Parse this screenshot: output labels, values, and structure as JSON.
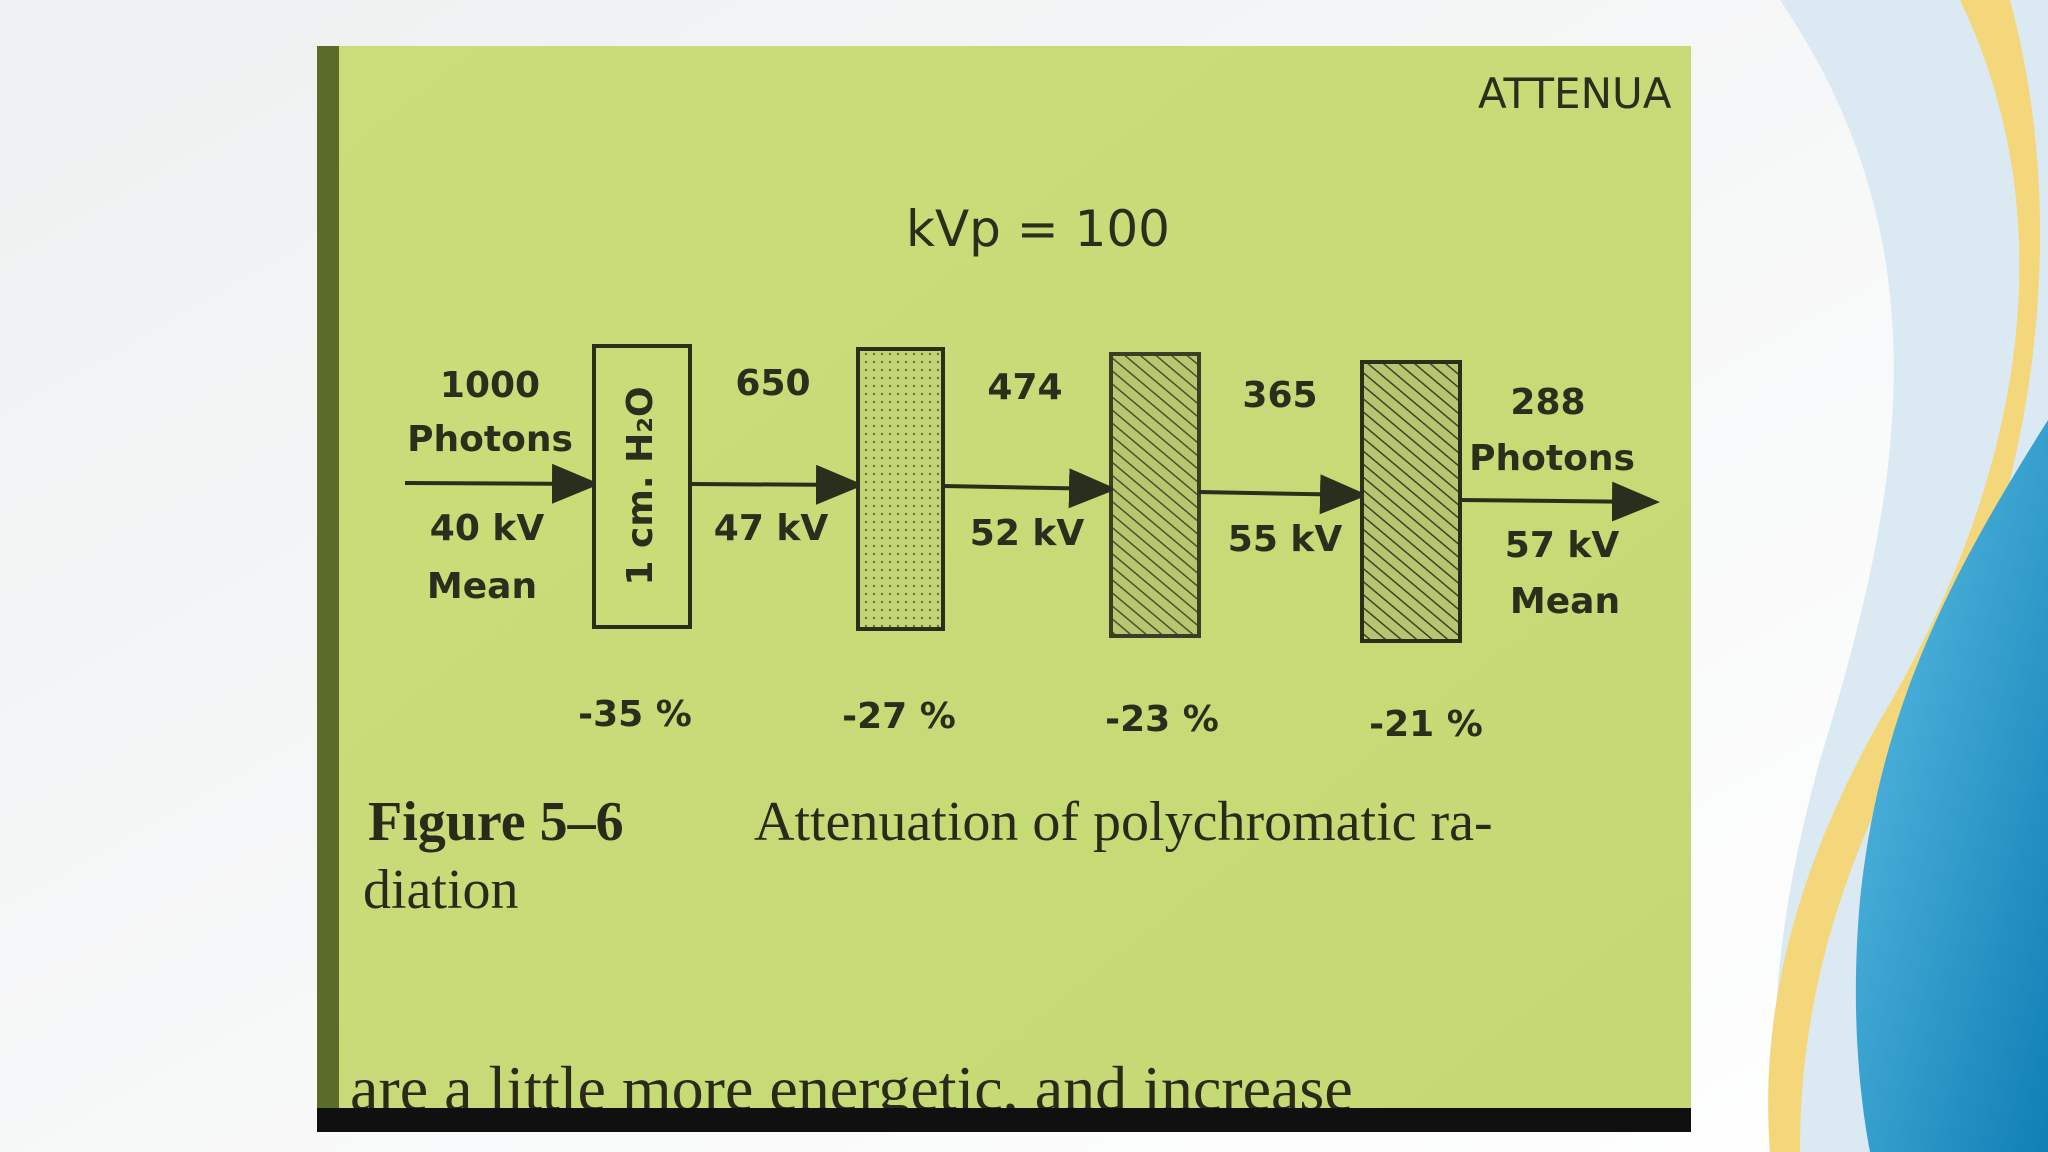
{
  "header": "ATTENUA",
  "figure": {
    "title": "kVp = 100",
    "incident": {
      "count": "1000",
      "unit": "Photons",
      "energy": "40 kV",
      "energy_note": "Mean"
    },
    "absorber_label": "1 cm. H₂O",
    "stages": [
      {
        "count": "650",
        "energy": "47 kV"
      },
      {
        "count": "474",
        "energy": "52 kV"
      },
      {
        "count": "365",
        "energy": "55 kV"
      }
    ],
    "exit": {
      "count": "288",
      "unit": "Photons",
      "energy": "57 kV",
      "energy_note": "Mean"
    },
    "losses": [
      "-35 %",
      "-27 %",
      "-23 %",
      "-21 %"
    ]
  },
  "caption": {
    "label": "Figure 5–6",
    "text": "Attenuation of polychromatic ra-",
    "text_cont": "diation"
  },
  "body": "are a little more energetic, and increase"
}
